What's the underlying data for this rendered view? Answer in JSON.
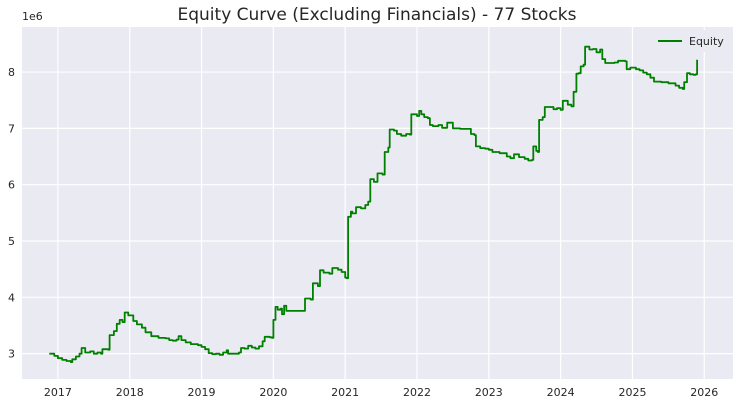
{
  "chart_data": {
    "type": "line",
    "title": "Equity Curve (Excluding Financials) - 77 Stocks",
    "xlabel": "",
    "ylabel": "",
    "y_offset_label": "1e6",
    "x_tick_labels": [
      "2017",
      "2018",
      "2019",
      "2020",
      "2021",
      "2022",
      "2023",
      "2024",
      "2025",
      "2026"
    ],
    "x_ticks": [
      2017,
      2018,
      2019,
      2020,
      2021,
      2022,
      2023,
      2024,
      2025,
      2026
    ],
    "y_tick_labels": [
      "3",
      "4",
      "5",
      "6",
      "7",
      "8"
    ],
    "y_ticks": [
      3000000,
      4000000,
      5000000,
      6000000,
      7000000,
      8000000
    ],
    "xlim": [
      2016.5,
      2026.4
    ],
    "ylim": [
      2550000,
      8800000
    ],
    "grid": true,
    "legend_position": "top-right",
    "background_color": "#eaeaf2",
    "grid_color": "#ffffff",
    "series": [
      {
        "name": "Equity",
        "color": "#008000",
        "points": [
          [
            2016.88,
            3000000
          ],
          [
            2016.95,
            2960000
          ],
          [
            2017.0,
            2920000
          ],
          [
            2017.06,
            2890000
          ],
          [
            2017.12,
            2870000
          ],
          [
            2017.18,
            2850000
          ],
          [
            2017.2,
            2900000
          ],
          [
            2017.25,
            2950000
          ],
          [
            2017.3,
            3000000
          ],
          [
            2017.33,
            3100000
          ],
          [
            2017.38,
            3020000
          ],
          [
            2017.45,
            3040000
          ],
          [
            2017.5,
            3000000
          ],
          [
            2017.55,
            3020000
          ],
          [
            2017.6,
            3000000
          ],
          [
            2017.62,
            3080000
          ],
          [
            2017.7,
            3070000
          ],
          [
            2017.72,
            3330000
          ],
          [
            2017.78,
            3400000
          ],
          [
            2017.82,
            3530000
          ],
          [
            2017.86,
            3600000
          ],
          [
            2017.9,
            3560000
          ],
          [
            2017.93,
            3730000
          ],
          [
            2017.98,
            3680000
          ],
          [
            2018.05,
            3580000
          ],
          [
            2018.1,
            3520000
          ],
          [
            2018.17,
            3460000
          ],
          [
            2018.22,
            3380000
          ],
          [
            2018.3,
            3310000
          ],
          [
            2018.4,
            3280000
          ],
          [
            2018.5,
            3270000
          ],
          [
            2018.55,
            3240000
          ],
          [
            2018.6,
            3230000
          ],
          [
            2018.65,
            3250000
          ],
          [
            2018.68,
            3310000
          ],
          [
            2018.72,
            3240000
          ],
          [
            2018.78,
            3200000
          ],
          [
            2018.85,
            3170000
          ],
          [
            2018.95,
            3150000
          ],
          [
            2019.0,
            3120000
          ],
          [
            2019.05,
            3080000
          ],
          [
            2019.1,
            3010000
          ],
          [
            2019.15,
            2990000
          ],
          [
            2019.2,
            3000000
          ],
          [
            2019.25,
            2980000
          ],
          [
            2019.3,
            3020000
          ],
          [
            2019.35,
            3060000
          ],
          [
            2019.37,
            3000000
          ],
          [
            2019.45,
            3000000
          ],
          [
            2019.52,
            3020000
          ],
          [
            2019.55,
            3100000
          ],
          [
            2019.6,
            3090000
          ],
          [
            2019.65,
            3140000
          ],
          [
            2019.7,
            3110000
          ],
          [
            2019.75,
            3090000
          ],
          [
            2019.8,
            3130000
          ],
          [
            2019.85,
            3220000
          ],
          [
            2019.88,
            3300000
          ],
          [
            2019.95,
            3290000
          ],
          [
            2019.98,
            3280000
          ],
          [
            2020.0,
            3600000
          ],
          [
            2020.03,
            3830000
          ],
          [
            2020.06,
            3780000
          ],
          [
            2020.1,
            3800000
          ],
          [
            2020.12,
            3700000
          ],
          [
            2020.15,
            3850000
          ],
          [
            2020.18,
            3760000
          ],
          [
            2020.3,
            3760000
          ],
          [
            2020.42,
            3760000
          ],
          [
            2020.44,
            3980000
          ],
          [
            2020.52,
            3960000
          ],
          [
            2020.55,
            4250000
          ],
          [
            2020.62,
            4200000
          ],
          [
            2020.65,
            4480000
          ],
          [
            2020.7,
            4440000
          ],
          [
            2020.78,
            4420000
          ],
          [
            2020.82,
            4520000
          ],
          [
            2020.9,
            4490000
          ],
          [
            2020.95,
            4450000
          ],
          [
            2021.0,
            4350000
          ],
          [
            2021.02,
            4340000
          ],
          [
            2021.04,
            5430000
          ],
          [
            2021.08,
            5520000
          ],
          [
            2021.1,
            5490000
          ],
          [
            2021.15,
            5600000
          ],
          [
            2021.22,
            5580000
          ],
          [
            2021.28,
            5640000
          ],
          [
            2021.32,
            5700000
          ],
          [
            2021.35,
            6100000
          ],
          [
            2021.4,
            6050000
          ],
          [
            2021.45,
            6200000
          ],
          [
            2021.52,
            6180000
          ],
          [
            2021.55,
            6580000
          ],
          [
            2021.6,
            6660000
          ],
          [
            2021.62,
            6980000
          ],
          [
            2021.68,
            6960000
          ],
          [
            2021.72,
            6900000
          ],
          [
            2021.78,
            6870000
          ],
          [
            2021.85,
            6900000
          ],
          [
            2021.9,
            6890000
          ],
          [
            2021.92,
            7250000
          ],
          [
            2022.0,
            7220000
          ],
          [
            2022.03,
            7310000
          ],
          [
            2022.06,
            7250000
          ],
          [
            2022.1,
            7200000
          ],
          [
            2022.15,
            7180000
          ],
          [
            2022.18,
            7060000
          ],
          [
            2022.22,
            7040000
          ],
          [
            2022.3,
            7060000
          ],
          [
            2022.35,
            7010000
          ],
          [
            2022.42,
            7100000
          ],
          [
            2022.5,
            7000000
          ],
          [
            2022.6,
            6990000
          ],
          [
            2022.65,
            6990000
          ],
          [
            2022.75,
            6900000
          ],
          [
            2022.8,
            6880000
          ],
          [
            2022.82,
            6680000
          ],
          [
            2022.88,
            6650000
          ],
          [
            2022.95,
            6640000
          ],
          [
            2023.0,
            6620000
          ],
          [
            2023.05,
            6580000
          ],
          [
            2023.15,
            6560000
          ],
          [
            2023.2,
            6560000
          ],
          [
            2023.25,
            6500000
          ],
          [
            2023.3,
            6470000
          ],
          [
            2023.35,
            6540000
          ],
          [
            2023.42,
            6490000
          ],
          [
            2023.5,
            6460000
          ],
          [
            2023.55,
            6430000
          ],
          [
            2023.6,
            6440000
          ],
          [
            2023.62,
            6680000
          ],
          [
            2023.66,
            6600000
          ],
          [
            2023.68,
            6580000
          ],
          [
            2023.7,
            7150000
          ],
          [
            2023.75,
            7200000
          ],
          [
            2023.78,
            7380000
          ],
          [
            2023.85,
            7380000
          ],
          [
            2023.9,
            7340000
          ],
          [
            2023.95,
            7360000
          ],
          [
            2024.0,
            7330000
          ],
          [
            2024.03,
            7490000
          ],
          [
            2024.1,
            7420000
          ],
          [
            2024.15,
            7390000
          ],
          [
            2024.18,
            7650000
          ],
          [
            2024.22,
            7970000
          ],
          [
            2024.25,
            7980000
          ],
          [
            2024.28,
            8100000
          ],
          [
            2024.32,
            8130000
          ],
          [
            2024.34,
            8450000
          ],
          [
            2024.4,
            8400000
          ],
          [
            2024.45,
            8410000
          ],
          [
            2024.5,
            8350000
          ],
          [
            2024.55,
            8400000
          ],
          [
            2024.58,
            8230000
          ],
          [
            2024.62,
            8160000
          ],
          [
            2024.7,
            8160000
          ],
          [
            2024.75,
            8170000
          ],
          [
            2024.8,
            8200000
          ],
          [
            2024.9,
            8190000
          ],
          [
            2024.92,
            8050000
          ],
          [
            2024.97,
            8080000
          ],
          [
            2025.05,
            8050000
          ],
          [
            2025.1,
            8030000
          ],
          [
            2025.15,
            7990000
          ],
          [
            2025.2,
            7960000
          ],
          [
            2025.25,
            7900000
          ],
          [
            2025.3,
            7830000
          ],
          [
            2025.4,
            7820000
          ],
          [
            2025.5,
            7800000
          ],
          [
            2025.6,
            7760000
          ],
          [
            2025.65,
            7720000
          ],
          [
            2025.7,
            7700000
          ],
          [
            2025.72,
            7820000
          ],
          [
            2025.76,
            7980000
          ],
          [
            2025.8,
            7960000
          ],
          [
            2025.85,
            7950000
          ],
          [
            2025.88,
            7960000
          ],
          [
            2025.9,
            8220000
          ]
        ]
      }
    ]
  }
}
